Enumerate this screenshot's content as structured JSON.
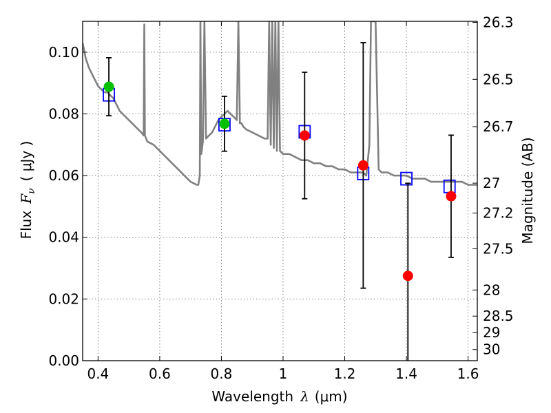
{
  "chart_data": {
    "type": "scatter",
    "title": "",
    "xlabel_prefix": "Wavelength",
    "xlabel_symbol": "λ",
    "xlabel_unit": "(μm)",
    "ylabel_prefix": "Flux",
    "ylabel_symbol": "F",
    "ylabel_sub": "ν",
    "ylabel_unit": "( μJy )",
    "y2label": "Magnitude (AB)",
    "xlim": [
      0.35,
      1.63
    ],
    "ylim": [
      0.0,
      0.11
    ],
    "grid": true,
    "x_ticks": [
      0.4,
      0.6,
      0.8,
      1.0,
      1.2,
      1.4,
      1.6
    ],
    "x_tick_labels": [
      "0.4",
      "0.6",
      "0.8",
      "1",
      "1.2",
      "1.4",
      "1.6"
    ],
    "y_ticks": [
      0.0,
      0.02,
      0.04,
      0.06,
      0.08,
      0.1
    ],
    "y_tick_labels": [
      "0.00",
      "0.02",
      "0.04",
      "0.06",
      "0.08",
      "0.10"
    ],
    "mag_ticks": [
      26.3,
      26.5,
      26.7,
      27,
      27.2,
      27.5,
      28,
      28.5,
      29,
      30
    ],
    "mag_tick_labels": [
      "26.3",
      "26.5",
      "26.7",
      "27",
      "27.2",
      "27.5",
      "28",
      "28.5",
      "29",
      "30"
    ],
    "colors": {
      "model": "#808080",
      "observed_detect": "#00c000",
      "observed": "#ff0000",
      "model_band": "#0000ff",
      "errorbar": "#000000"
    },
    "series": [
      {
        "kind": "line",
        "x": [
          0.35,
          0.36,
          0.37,
          0.38,
          0.39,
          0.4,
          0.41,
          0.42,
          0.43,
          0.44,
          0.45,
          0.46,
          0.47,
          0.48,
          0.5,
          0.52,
          0.54,
          0.548,
          0.55,
          0.552,
          0.56,
          0.58,
          0.6,
          0.62,
          0.64,
          0.66,
          0.68,
          0.7,
          0.72,
          0.725,
          0.73,
          0.732,
          0.735,
          0.74,
          0.745,
          0.75,
          0.76,
          0.77,
          0.78,
          0.79,
          0.8,
          0.81,
          0.82,
          0.83,
          0.84,
          0.85,
          0.855,
          0.86,
          0.865,
          0.87,
          0.88,
          0.9,
          0.92,
          0.94,
          0.95,
          0.955,
          0.96,
          0.965,
          0.97,
          0.975,
          0.98,
          0.985,
          0.99,
          1.0,
          1.02,
          1.04,
          1.06,
          1.08,
          1.1,
          1.12,
          1.14,
          1.16,
          1.18,
          1.2,
          1.22,
          1.24,
          1.26,
          1.27,
          1.28,
          1.285,
          1.29,
          1.3,
          1.31,
          1.32,
          1.34,
          1.36,
          1.38,
          1.4,
          1.42,
          1.44,
          1.46,
          1.48,
          1.5,
          1.52,
          1.54,
          1.56,
          1.58,
          1.6,
          1.63
        ],
        "y": [
          0.103,
          0.098,
          0.095,
          0.093,
          0.091,
          0.089,
          0.088,
          0.087,
          0.087,
          0.086,
          0.085,
          0.083,
          0.081,
          0.08,
          0.078,
          0.076,
          0.074,
          0.073,
          0.109,
          0.073,
          0.071,
          0.07,
          0.068,
          0.066,
          0.064,
          0.062,
          0.06,
          0.058,
          0.057,
          0.057,
          0.06,
          0.11,
          0.067,
          0.071,
          0.11,
          0.072,
          0.073,
          0.074,
          0.076,
          0.078,
          0.079,
          0.08,
          0.081,
          0.08,
          0.079,
          0.078,
          0.11,
          0.077,
          0.077,
          0.076,
          0.075,
          0.074,
          0.073,
          0.072,
          0.072,
          0.11,
          0.07,
          0.11,
          0.069,
          0.11,
          0.068,
          0.11,
          0.068,
          0.067,
          0.067,
          0.066,
          0.065,
          0.065,
          0.064,
          0.064,
          0.063,
          0.063,
          0.062,
          0.062,
          0.061,
          0.061,
          0.061,
          0.06,
          0.07,
          0.11,
          0.11,
          0.11,
          0.062,
          0.061,
          0.061,
          0.06,
          0.06,
          0.06,
          0.059,
          0.059,
          0.059,
          0.058,
          0.058,
          0.058,
          0.058,
          0.058,
          0.058,
          0.057,
          0.057
        ]
      },
      {
        "kind": "model_band",
        "x": [
          0.435,
          0.81,
          1.07,
          1.26,
          1.4,
          1.54
        ],
        "y": [
          0.0862,
          0.0765,
          0.0742,
          0.0607,
          0.059,
          0.0565
        ]
      },
      {
        "kind": "observed",
        "x": [
          0.435,
          0.81,
          1.07,
          1.26,
          1.405,
          1.545
        ],
        "y": [
          0.0888,
          0.0768,
          0.073,
          0.0633,
          0.0275,
          0.0533
        ],
        "yerr_low": [
          0.0094,
          0.0089,
          0.0205,
          0.0398,
          0.03,
          0.0198
        ],
        "yerr_high": [
          0.0094,
          0.0089,
          0.0205,
          0.0398,
          0.03,
          0.0198
        ],
        "color_key": [
          "observed_detect",
          "observed_detect",
          "observed",
          "observed",
          "observed",
          "observed"
        ]
      }
    ]
  }
}
